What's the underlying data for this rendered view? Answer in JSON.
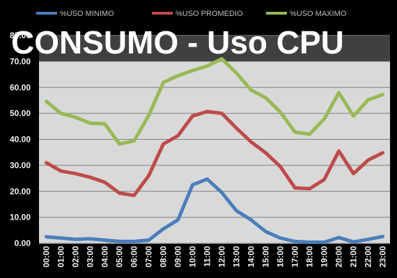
{
  "title": "CONSUMO - Uso CPU",
  "colors": {
    "background": "#000000",
    "plot_area": "#d9d9d9",
    "plot_band": "#404040",
    "gridline": "#7f7f7f",
    "tick_text": "#f2f2f2"
  },
  "chart_data": {
    "type": "line",
    "title": "CONSUMO - Uso CPU",
    "xlabel": "",
    "ylabel": "",
    "categories": [
      "00:00",
      "01:00",
      "02:00",
      "03:00",
      "04:00",
      "05:00",
      "06:00",
      "07:00",
      "08:00",
      "09:00",
      "10:00",
      "11:00",
      "12:00",
      "13:00",
      "14:00",
      "15:00",
      "16:00",
      "17:00",
      "18:00",
      "19:00",
      "20:00",
      "21:00",
      "22:00",
      "23:00"
    ],
    "y_ticks": [
      "0.00",
      "10.00",
      "20.00",
      "30.00",
      "40.00",
      "50.00",
      "60.00",
      "70.00",
      "80.00"
    ],
    "ylim": [
      0,
      80
    ],
    "grid": true,
    "legend_position": "top",
    "series": [
      {
        "name": "%USO MINIMO",
        "color": "#4a7ebb",
        "values": [
          2.5,
          2.0,
          1.5,
          1.7,
          1.2,
          0.7,
          0.7,
          1.2,
          5.5,
          9.0,
          22.5,
          24.7,
          19.5,
          12.5,
          9.0,
          4.5,
          2.0,
          0.7,
          0.4,
          0.4,
          2.2,
          0.5,
          1.5,
          2.6
        ]
      },
      {
        "name": "%USO PROMEDIO",
        "color": "#be4b48",
        "values": [
          31.0,
          27.8,
          26.8,
          25.4,
          23.5,
          19.3,
          18.4,
          26.0,
          38.2,
          41.4,
          49.0,
          50.7,
          50.0,
          44.3,
          39.0,
          34.8,
          29.5,
          21.3,
          21.0,
          24.5,
          35.5,
          26.8,
          32.0,
          34.8
        ]
      },
      {
        "name": "%USO MAXIMO",
        "color": "#98b954",
        "values": [
          54.6,
          50.0,
          48.5,
          46.2,
          46.0,
          38.2,
          39.4,
          49.2,
          61.9,
          64.5,
          66.5,
          68.2,
          71.0,
          65.5,
          59.0,
          56.0,
          50.5,
          42.8,
          42.0,
          47.8,
          58.0,
          49.0,
          55.2,
          57.2
        ]
      }
    ]
  }
}
